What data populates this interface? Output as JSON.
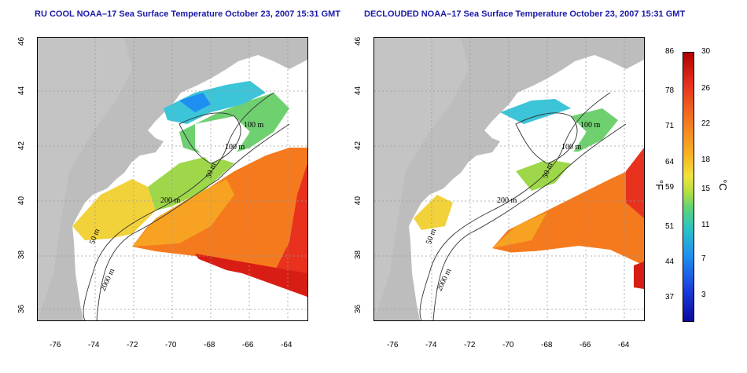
{
  "panels": [
    {
      "title": "RU COOL NOAA–17 Sea Surface Temperature October 23, 2007 15:31 GMT"
    },
    {
      "title": "DECLOUDED NOAA–17 Sea Surface Temperature October 23, 2007 15:31 GMT"
    }
  ],
  "axes": {
    "x_ticks": [
      "-76",
      "-74",
      "-72",
      "-70",
      "-68",
      "-66",
      "-64"
    ],
    "y_ticks": [
      "46",
      "44",
      "42",
      "40",
      "38",
      "36"
    ]
  },
  "contour_labels": {
    "left": [
      "100 m",
      "100 m",
      "50 m",
      "200 m",
      "50 m",
      "2000 m"
    ],
    "right": [
      "100 m",
      "100 m",
      "50 m",
      "200 m",
      "50 m",
      "2000 m"
    ]
  },
  "colorbar": {
    "fahrenheit": [
      "86",
      "78",
      "71",
      "64",
      "59",
      "51",
      "44",
      "37"
    ],
    "celsius": [
      "30",
      "26",
      "22",
      "18",
      "15",
      "11",
      "7",
      "3"
    ],
    "unit_f": "°F",
    "unit_c": "°C",
    "colors": [
      "#b00000",
      "#e8321e",
      "#f57a1e",
      "#f7b321",
      "#f2e33a",
      "#b3e040",
      "#5fd27a",
      "#27c2c9",
      "#1e8ff0",
      "#1c3fe0",
      "#0a0a9e"
    ]
  },
  "colors": {
    "land": "#bdbdbd",
    "title": "#1a1aa6",
    "grid": "#9a9a9a"
  }
}
